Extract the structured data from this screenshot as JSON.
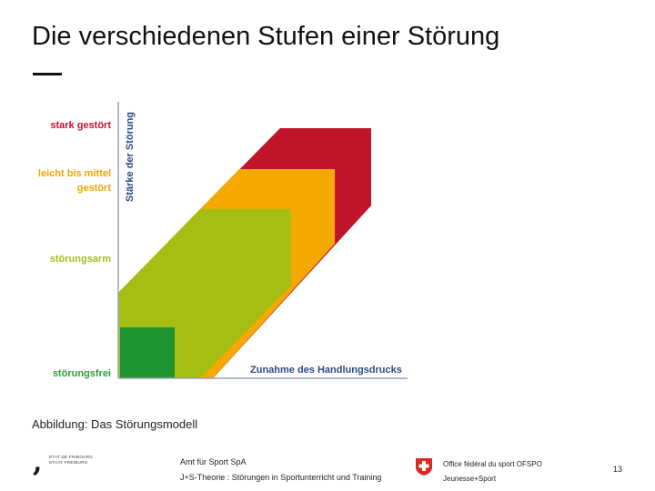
{
  "slide": {
    "title": "Die verschiedenen Stufen einer Störung",
    "caption": "Abbildung: Das Störungsmodell",
    "page_number": "13"
  },
  "diagram": {
    "y_axis_label": "Stärke der Störung",
    "x_axis_label": "Zunahme des Handlungsdrucks",
    "levels": [
      {
        "label_lines": [
          "stark gestört"
        ],
        "color": "#c0142a"
      },
      {
        "label_lines": [
          "leicht bis mittel",
          "gestört"
        ],
        "color": "#f5a800"
      },
      {
        "label_lines": [
          "störungsarm"
        ],
        "color": "#a6be14"
      },
      {
        "label_lines": [
          "störungsfrei"
        ],
        "color": "#1e9332"
      }
    ],
    "label_colors": {
      "stark": "#c8102e",
      "leicht": "#f0a500",
      "arm": "#a3bd1c",
      "frei": "#2e9e3a",
      "axis": "#2a4a8a"
    }
  },
  "footer": {
    "logo_lines": [
      "ETAT DE FRIBOURG",
      "STAAT FREIBURG"
    ],
    "institution": "Amt für Sport SpA",
    "course": "J+S-Theorie : Störungen in Sportunterricht und Training",
    "office": "Office fédéral du sport OFSPO",
    "program": "Jeunesse+Sport"
  }
}
